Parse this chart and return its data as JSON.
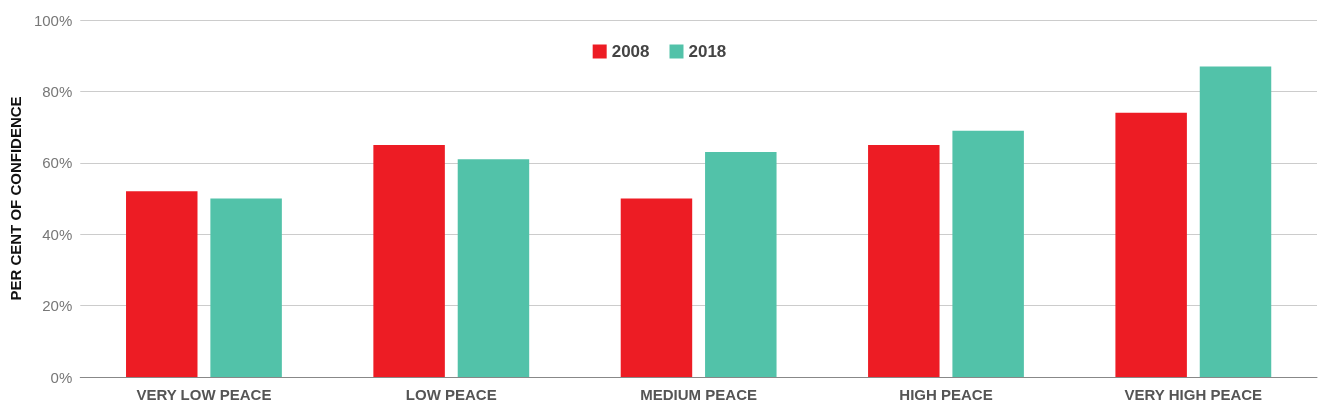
{
  "chart_data": {
    "type": "bar",
    "ylabel": "PER CENT OF CONFIDENCE",
    "categories": [
      "VERY LOW PEACE",
      "LOW PEACE",
      "MEDIUM PEACE",
      "HIGH PEACE",
      "VERY HIGH PEACE"
    ],
    "series": [
      {
        "name": "2008",
        "color": "#ed1c24",
        "values": [
          52,
          65,
          50,
          65,
          74
        ]
      },
      {
        "name": "2018",
        "color": "#52c2a9",
        "values": [
          50,
          61,
          63,
          69,
          87
        ]
      }
    ],
    "ylim": [
      0,
      100
    ],
    "yticks": [
      {
        "value": 0,
        "label": "0%"
      },
      {
        "value": 20,
        "label": "20%"
      },
      {
        "value": 40,
        "label": "40%"
      },
      {
        "value": 60,
        "label": "60%"
      },
      {
        "value": 80,
        "label": "80%"
      },
      {
        "value": 100,
        "label": "100%"
      }
    ],
    "grid": "y",
    "legend": "top"
  }
}
